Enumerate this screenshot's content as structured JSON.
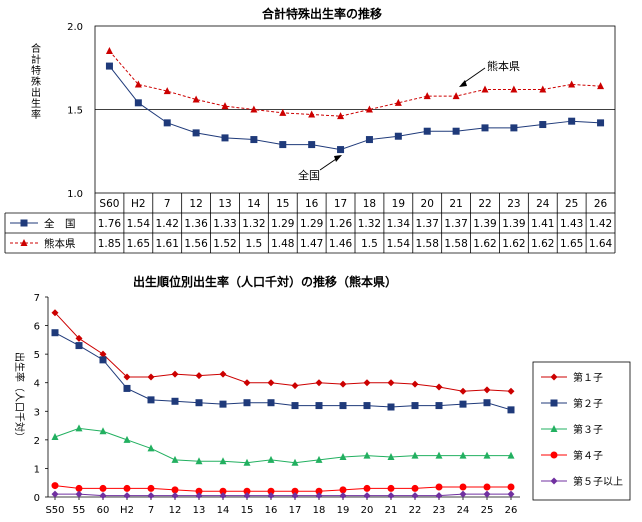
{
  "chart_data": [
    {
      "type": "line",
      "title": "合計特殊出生率の推移",
      "ylabel": "合計特殊出生率",
      "ylim": [
        1.0,
        2.0
      ],
      "yticks": [
        "1.0",
        "1.5",
        "2.0"
      ],
      "grid": true,
      "categories": [
        "S60",
        "H2",
        "7",
        "12",
        "13",
        "14",
        "15",
        "16",
        "17",
        "18",
        "19",
        "20",
        "21",
        "22",
        "23",
        "24",
        "25",
        "26"
      ],
      "series": [
        {
          "name": "全　国",
          "color": "#1f3a7a",
          "marker": "square",
          "values": [
            1.76,
            1.54,
            1.42,
            1.36,
            1.33,
            1.32,
            1.29,
            1.29,
            1.26,
            1.32,
            1.34,
            1.37,
            1.37,
            1.39,
            1.39,
            1.41,
            1.43,
            1.42
          ],
          "labels": [
            "1.76",
            "1.54",
            "1.42",
            "1.36",
            "1.33",
            "1.32",
            "1.29",
            "1.29",
            "1.26",
            "1.32",
            "1.34",
            "1.37",
            "1.37",
            "1.39",
            "1.39",
            "1.41",
            "1.43",
            "1.42"
          ]
        },
        {
          "name": "熊本県",
          "color": "#cc0000",
          "marker": "triangle",
          "values": [
            1.85,
            1.65,
            1.61,
            1.56,
            1.52,
            1.5,
            1.48,
            1.47,
            1.46,
            1.5,
            1.54,
            1.58,
            1.58,
            1.62,
            1.62,
            1.62,
            1.65,
            1.64
          ],
          "labels": [
            "1.85",
            "1.65",
            "1.61",
            "1.56",
            "1.52",
            "1.5",
            "1.48",
            "1.47",
            "1.46",
            "1.5",
            "1.54",
            "1.58",
            "1.58",
            "1.62",
            "1.62",
            "1.62",
            "1.65",
            "1.64"
          ]
        }
      ],
      "annotations": [
        "熊本県",
        "全国"
      ]
    },
    {
      "type": "line",
      "title": "出生順位別出生率（人口千対）の推移（熊本県）",
      "ylabel": "出生率（人口千対）",
      "ylim": [
        0,
        7
      ],
      "yticks": [
        "0",
        "1",
        "2",
        "3",
        "4",
        "5",
        "6",
        "7"
      ],
      "grid": false,
      "legend": "right",
      "categories": [
        "S50",
        "55",
        "60",
        "H2",
        "7",
        "12",
        "13",
        "14",
        "15",
        "16",
        "17",
        "18",
        "19",
        "20",
        "21",
        "22",
        "23",
        "24",
        "25",
        "26"
      ],
      "series": [
        {
          "name": "第１子",
          "color": "#cc0000",
          "marker": "diamond",
          "values": [
            6.45,
            5.55,
            5.0,
            4.2,
            4.2,
            4.3,
            4.25,
            4.3,
            4.0,
            4.0,
            3.9,
            4.0,
            3.95,
            4.0,
            4.0,
            3.95,
            3.85,
            3.7,
            3.75,
            3.7
          ]
        },
        {
          "name": "第２子",
          "color": "#1f3a7a",
          "marker": "square",
          "values": [
            5.75,
            5.3,
            4.8,
            3.8,
            3.4,
            3.35,
            3.3,
            3.25,
            3.3,
            3.3,
            3.2,
            3.2,
            3.2,
            3.2,
            3.15,
            3.2,
            3.2,
            3.25,
            3.3,
            3.05
          ]
        },
        {
          "name": "第３子",
          "color": "#22b060",
          "marker": "triangle",
          "values": [
            2.1,
            2.4,
            2.3,
            2.0,
            1.7,
            1.3,
            1.25,
            1.25,
            1.2,
            1.3,
            1.2,
            1.3,
            1.4,
            1.45,
            1.4,
            1.45,
            1.45,
            1.45,
            1.45,
            1.45
          ]
        },
        {
          "name": "第４子",
          "color": "#ff0000",
          "marker": "circle",
          "values": [
            0.4,
            0.3,
            0.3,
            0.3,
            0.3,
            0.25,
            0.2,
            0.2,
            0.2,
            0.2,
            0.2,
            0.2,
            0.25,
            0.3,
            0.3,
            0.3,
            0.35,
            0.35,
            0.35,
            0.35
          ]
        },
        {
          "name": "第５子以上",
          "color": "#7030a0",
          "marker": "diamond",
          "values": [
            0.1,
            0.1,
            0.05,
            0.05,
            0.05,
            0.05,
            0.05,
            0.05,
            0.05,
            0.05,
            0.05,
            0.05,
            0.05,
            0.05,
            0.05,
            0.05,
            0.05,
            0.1,
            0.1,
            0.1
          ]
        }
      ]
    }
  ]
}
